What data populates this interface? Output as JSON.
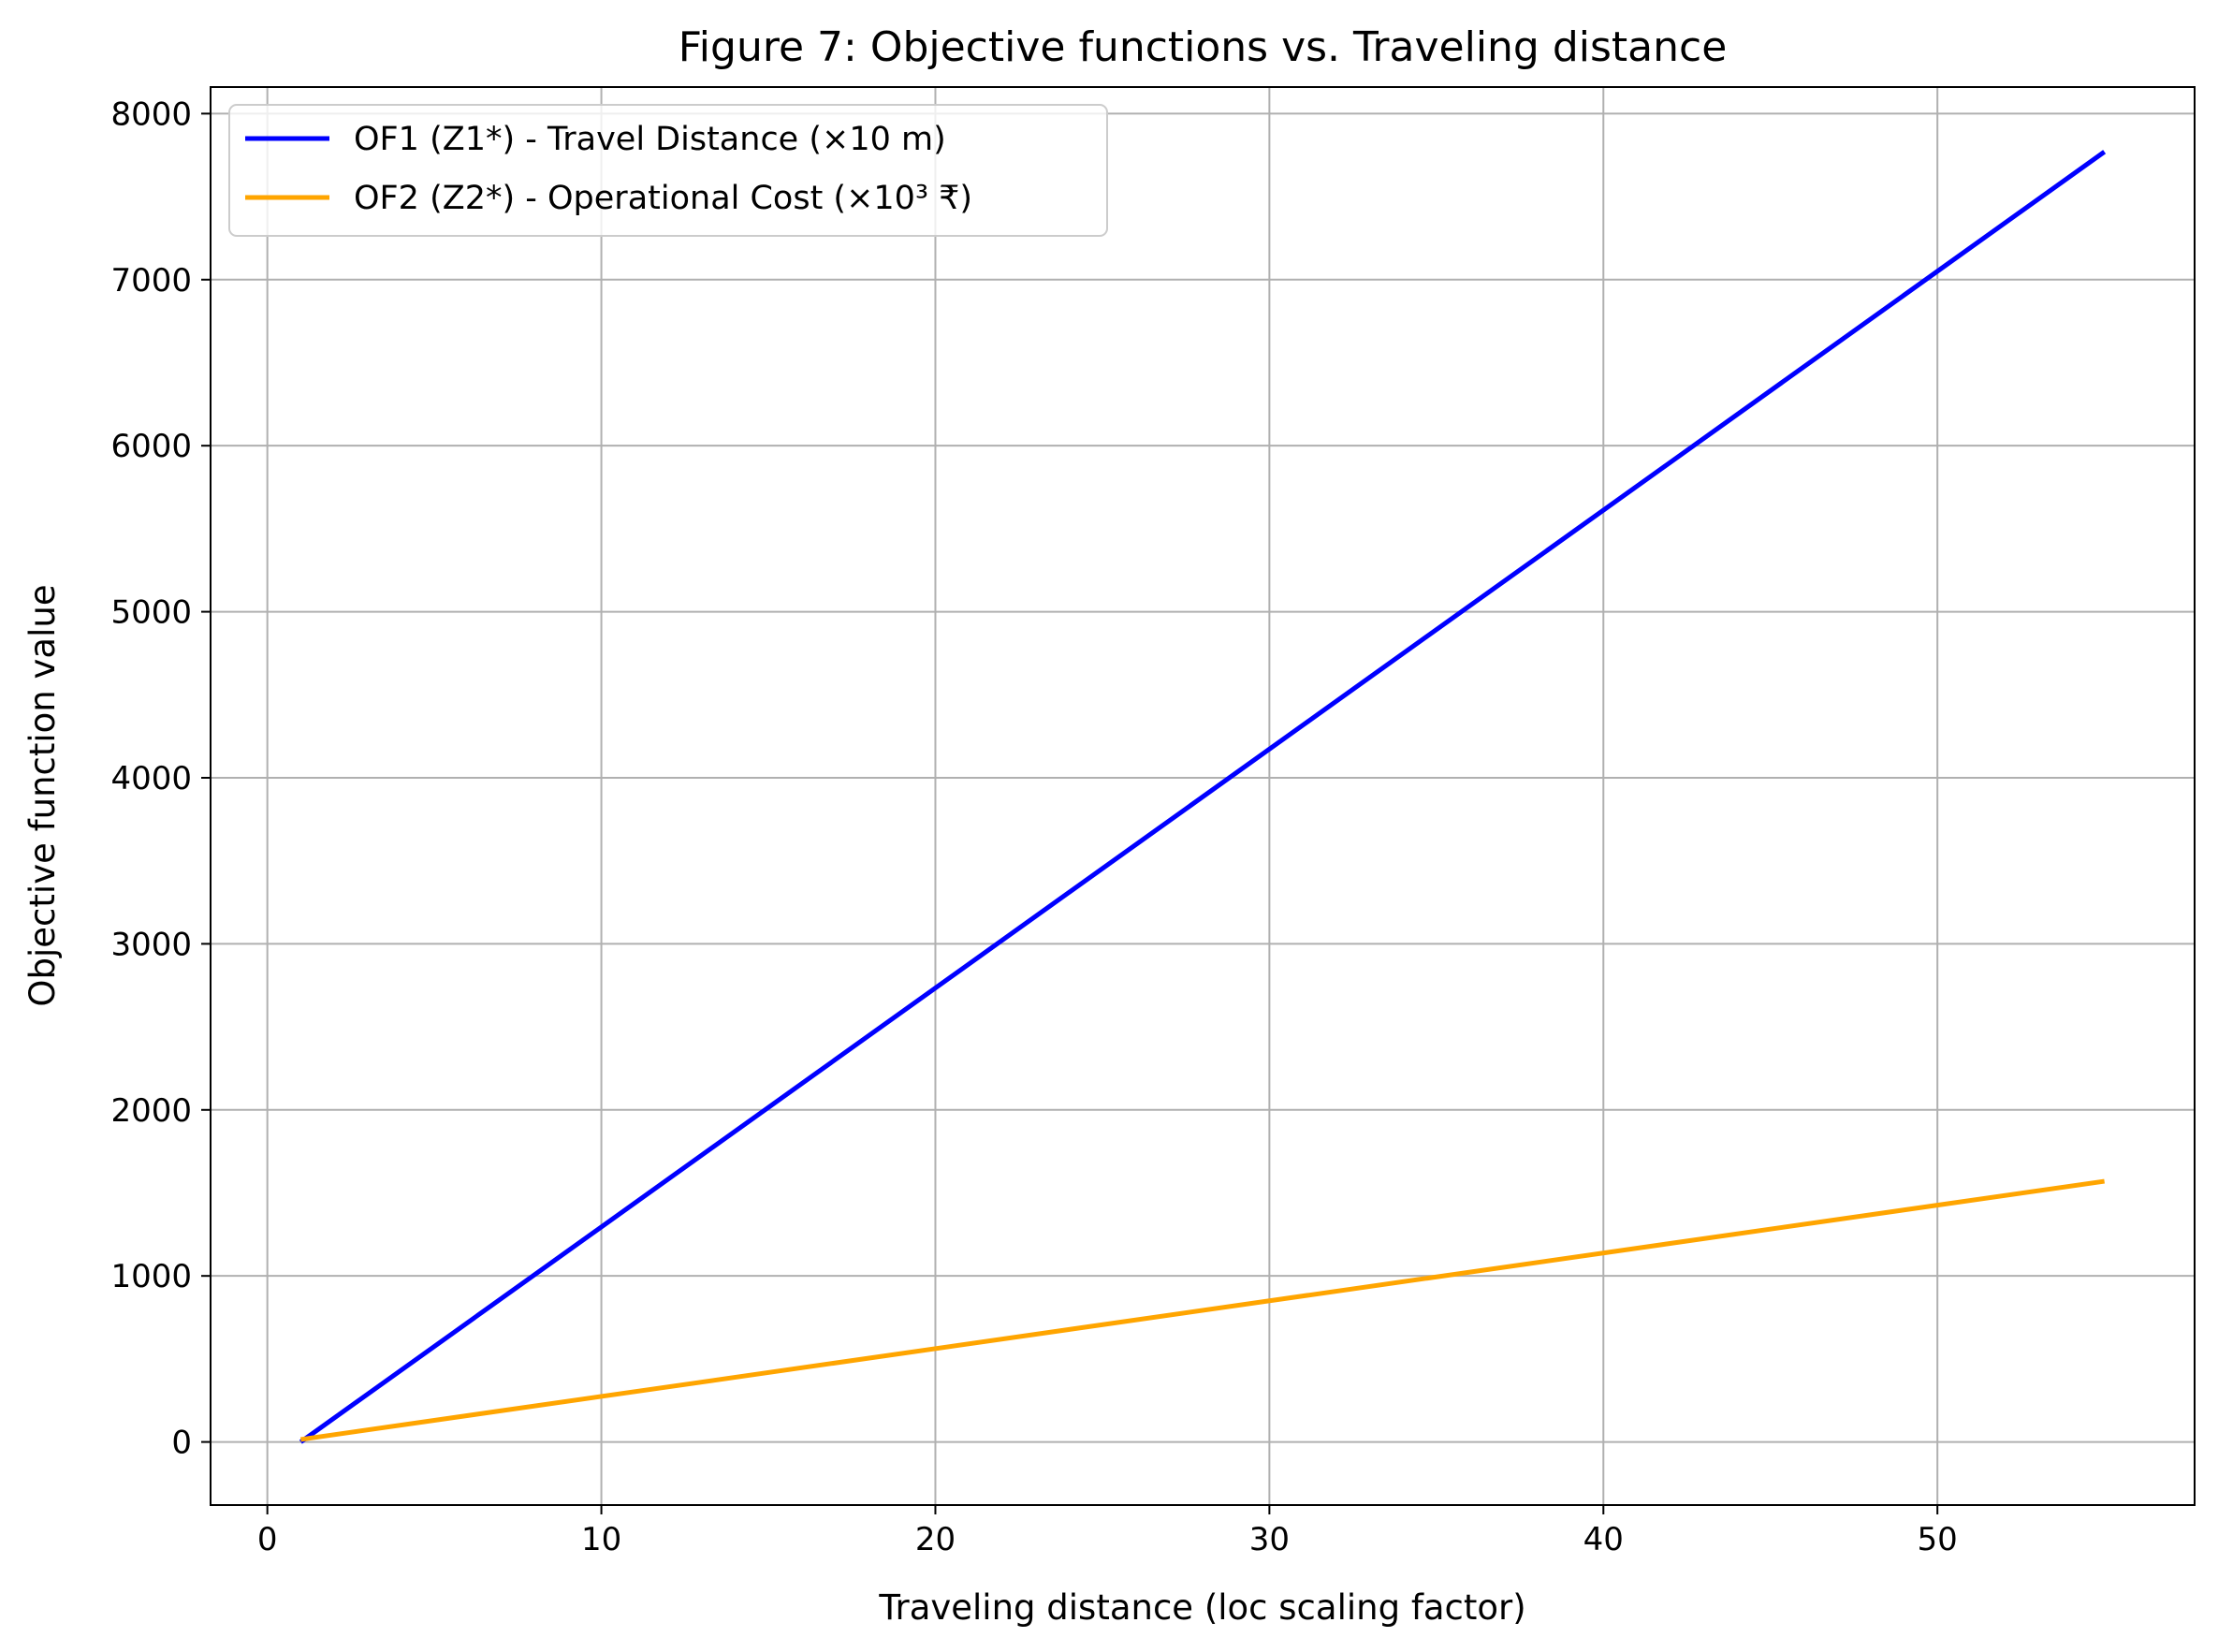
{
  "chart_data": {
    "type": "line",
    "title": "Figure 7: Objective functions vs. Traveling distance",
    "xlabel": "Traveling distance (loc scaling factor)",
    "ylabel": "Objective function value",
    "xlim": [
      -1.7,
      57.7
    ],
    "ylim": [
      -380,
      8160
    ],
    "xticks": [
      0,
      10,
      20,
      30,
      40,
      50
    ],
    "yticks": [
      0,
      1000,
      2000,
      3000,
      4000,
      5000,
      6000,
      7000,
      8000
    ],
    "grid": true,
    "legend_position": "top-left",
    "series": [
      {
        "name": "OF1 (Z1*) - Travel Distance (×10 m)",
        "color": "#0000ff",
        "x": [
          1,
          55
        ],
        "y": [
          0,
          7770
        ]
      },
      {
        "name": "OF2 (Z2*) - Operational Cost (×10³ ₹)",
        "color": "#ffa500",
        "x": [
          1,
          55
        ],
        "y": [
          15,
          1570
        ]
      }
    ]
  }
}
